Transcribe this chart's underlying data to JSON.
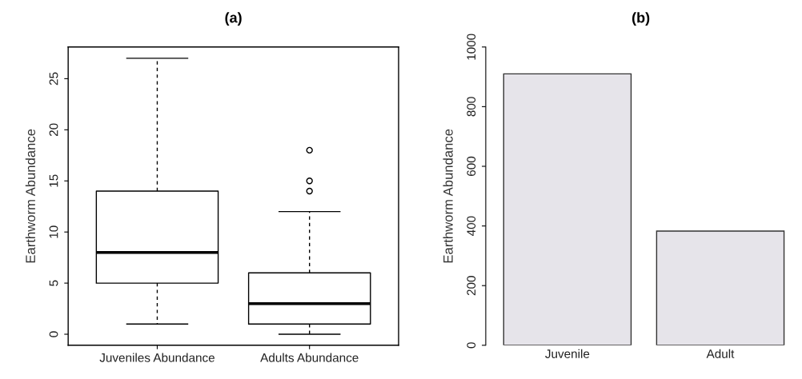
{
  "chart_data": [
    {
      "type": "box",
      "title": "(a)",
      "ylabel": "Earthworm Abundance",
      "categories": [
        "Juveniles Abundance",
        "Adults Abundance"
      ],
      "boxes": [
        {
          "low": 1,
          "q1": 5,
          "median": 8,
          "q3": 14,
          "high": 27
        },
        {
          "low": 0,
          "q1": 1,
          "median": 3,
          "q3": 6,
          "high": 12,
          "outliers": [
            14,
            15,
            18
          ]
        }
      ],
      "ylim": [
        -1.08,
        28.1
      ],
      "yticks": [
        0,
        5,
        10,
        15,
        20,
        25
      ],
      "grid": false
    },
    {
      "type": "bar",
      "title": "(b)",
      "ylabel": "Earthworm Abundance",
      "categories": [
        "Juvenile",
        "Adult"
      ],
      "values": [
        910,
        383
      ],
      "color": "#e6e4ea",
      "ylim": [
        0,
        1000
      ],
      "yticks": [
        0,
        200,
        400,
        600,
        800,
        1000
      ],
      "grid": false
    }
  ]
}
